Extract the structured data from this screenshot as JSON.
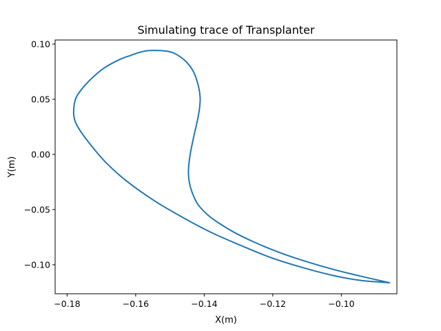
{
  "chart_data": {
    "type": "line",
    "title": "Simulating trace of Transplanter",
    "xlabel": "X(m)",
    "ylabel": "Y(m)",
    "xlim": [
      -0.1835,
      -0.0838
    ],
    "ylim": [
      -0.1263,
      0.1037
    ],
    "xticks": [
      -0.18,
      -0.16,
      -0.14,
      -0.12,
      -0.1
    ],
    "xtick_labels": [
      "−0.18",
      "−0.16",
      "−0.14",
      "−0.12",
      "−0.10"
    ],
    "yticks": [
      0.1,
      0.05,
      0.0,
      -0.05,
      -0.1
    ],
    "ytick_labels": [
      "0.10",
      "0.05",
      "0.00",
      "−0.05",
      "−0.10"
    ],
    "grid": false,
    "colors": {
      "series": "#1f77b4"
    },
    "series": [
      {
        "x": [
          -0.086,
          -0.0943,
          -0.1014,
          -0.1079,
          -0.1148,
          -0.1204,
          -0.1262,
          -0.131,
          -0.1346,
          -0.1381,
          -0.14,
          -0.142,
          -0.1436,
          -0.1444,
          -0.1446,
          -0.1441,
          -0.1431,
          -0.142,
          -0.1414,
          -0.1412,
          -0.1418,
          -0.1431,
          -0.145,
          -0.147,
          -0.149,
          -0.151,
          -0.1534,
          -0.1566,
          -0.1592,
          -0.1615,
          -0.1649,
          -0.1693,
          -0.1733,
          -0.1761,
          -0.1776,
          -0.1781,
          -0.1777,
          -0.1763,
          -0.1738,
          -0.1691,
          -0.163,
          -0.1548,
          -0.1468,
          -0.1381,
          -0.1294,
          -0.1204,
          -0.1117,
          -0.1023,
          -0.0944,
          -0.086
        ],
        "y": [
          -0.1163,
          -0.1104,
          -0.105,
          -0.0993,
          -0.0925,
          -0.0861,
          -0.0784,
          -0.0711,
          -0.0645,
          -0.0571,
          -0.0519,
          -0.0446,
          -0.0339,
          -0.0245,
          -0.0137,
          0.0,
          0.0156,
          0.0307,
          0.0413,
          0.0517,
          0.0632,
          0.0747,
          0.0831,
          0.0884,
          0.092,
          0.0936,
          0.0942,
          0.094,
          0.0922,
          0.0897,
          0.0857,
          0.0781,
          0.0675,
          0.0577,
          0.0496,
          0.0384,
          0.0303,
          0.022,
          0.0113,
          -0.006,
          -0.0233,
          -0.0415,
          -0.0562,
          -0.0705,
          -0.0824,
          -0.0937,
          -0.1022,
          -0.1098,
          -0.1142,
          -0.1163
        ]
      }
    ]
  }
}
